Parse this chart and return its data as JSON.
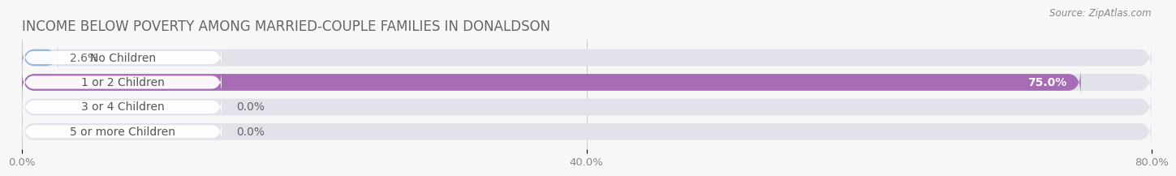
{
  "title": "INCOME BELOW POVERTY AMONG MARRIED-COUPLE FAMILIES IN DONALDSON",
  "source": "Source: ZipAtlas.com",
  "categories": [
    "No Children",
    "1 or 2 Children",
    "3 or 4 Children",
    "5 or more Children"
  ],
  "values": [
    2.6,
    75.0,
    0.0,
    0.0
  ],
  "bar_colors": [
    "#9ab8d8",
    "#a86bb5",
    "#5bbfb8",
    "#9fa8d5"
  ],
  "background_color": "#f7f7f7",
  "bar_bg_color": "#e2e2ea",
  "xlim_max": 80.0,
  "xticks": [
    0.0,
    40.0,
    80.0
  ],
  "xtick_labels": [
    "0.0%",
    "40.0%",
    "80.0%"
  ],
  "bar_height": 0.68,
  "title_fontsize": 12,
  "label_fontsize": 10,
  "value_fontsize": 10,
  "tick_fontsize": 9.5,
  "value_label_2": "2.6%",
  "value_label_75": "75.0%",
  "value_label_0a": "0.0%",
  "value_label_0b": "0.0%"
}
